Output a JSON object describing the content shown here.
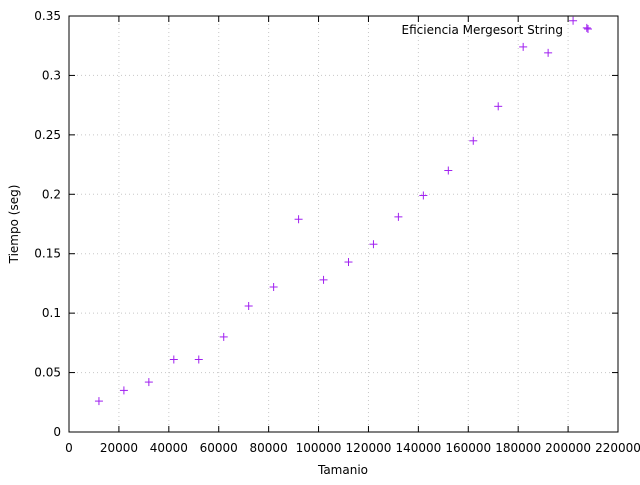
{
  "chart_data": {
    "type": "scatter",
    "xlabel": "Tamanio",
    "ylabel": "Tiempo (seg)",
    "xlim": [
      0,
      220000
    ],
    "ylim": [
      0,
      0.35
    ],
    "x_ticks": [
      "0",
      "20000",
      "40000",
      "60000",
      "80000",
      "100000",
      "120000",
      "140000",
      "160000",
      "180000",
      "200000",
      "220000"
    ],
    "y_ticks": [
      "0",
      "0.05",
      "0.1",
      "0.15",
      "0.2",
      "0.25",
      "0.3",
      "0.35"
    ],
    "grid": true,
    "legend_position": "top-right",
    "series": [
      {
        "name": "Eficiencia Mergesort String",
        "color": "#a020f0",
        "marker": "plus",
        "x": [
          12000,
          22000,
          32000,
          42000,
          52000,
          62000,
          72000,
          82000,
          92000,
          102000,
          112000,
          122000,
          132000,
          142000,
          152000,
          162000,
          172000,
          182000,
          192000,
          202000,
          207500
        ],
        "y": [
          0.026,
          0.035,
          0.042,
          0.061,
          0.061,
          0.08,
          0.106,
          0.122,
          0.179,
          0.128,
          0.143,
          0.158,
          0.181,
          0.199,
          0.22,
          0.245,
          0.274,
          0.324,
          0.319,
          0.346,
          0.34
        ]
      }
    ]
  }
}
